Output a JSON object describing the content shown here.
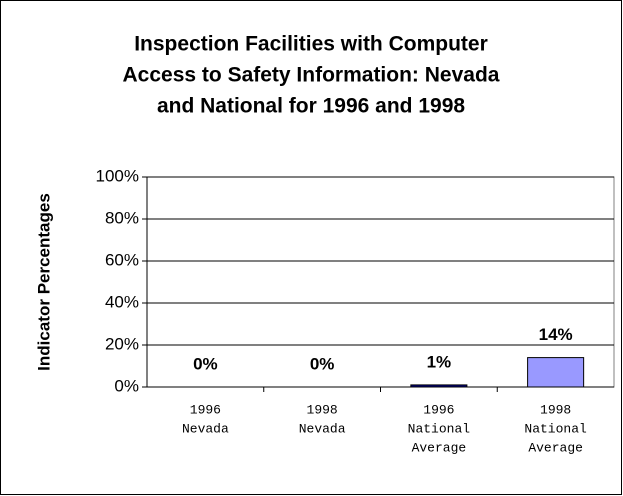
{
  "chart_data": {
    "type": "bar",
    "title": [
      "Inspection Facilities with Computer",
      "Access to Safety Information: Nevada",
      "and National for 1996 and 1998"
    ],
    "y_label": "Indicator Percentages",
    "categories": [
      [
        "1996",
        "Nevada"
      ],
      [
        "1998",
        "Nevada"
      ],
      [
        "1996",
        "National",
        "Average"
      ],
      [
        "1998",
        "National",
        "Average"
      ]
    ],
    "values": [
      0,
      0,
      1,
      14
    ],
    "value_labels": [
      "0%",
      "0%",
      "1%",
      "14%"
    ],
    "colors": [
      "#000080",
      "#9999ff",
      "#000080",
      "#9999ff"
    ],
    "ylim": [
      0,
      100
    ],
    "yticks": [
      {
        "value": 0,
        "label": "0%"
      },
      {
        "value": 20,
        "label": "20%"
      },
      {
        "value": 40,
        "label": "40%"
      },
      {
        "value": 60,
        "label": "60%"
      },
      {
        "value": 80,
        "label": "80%"
      },
      {
        "value": 100,
        "label": "100%"
      }
    ],
    "grid": true
  }
}
